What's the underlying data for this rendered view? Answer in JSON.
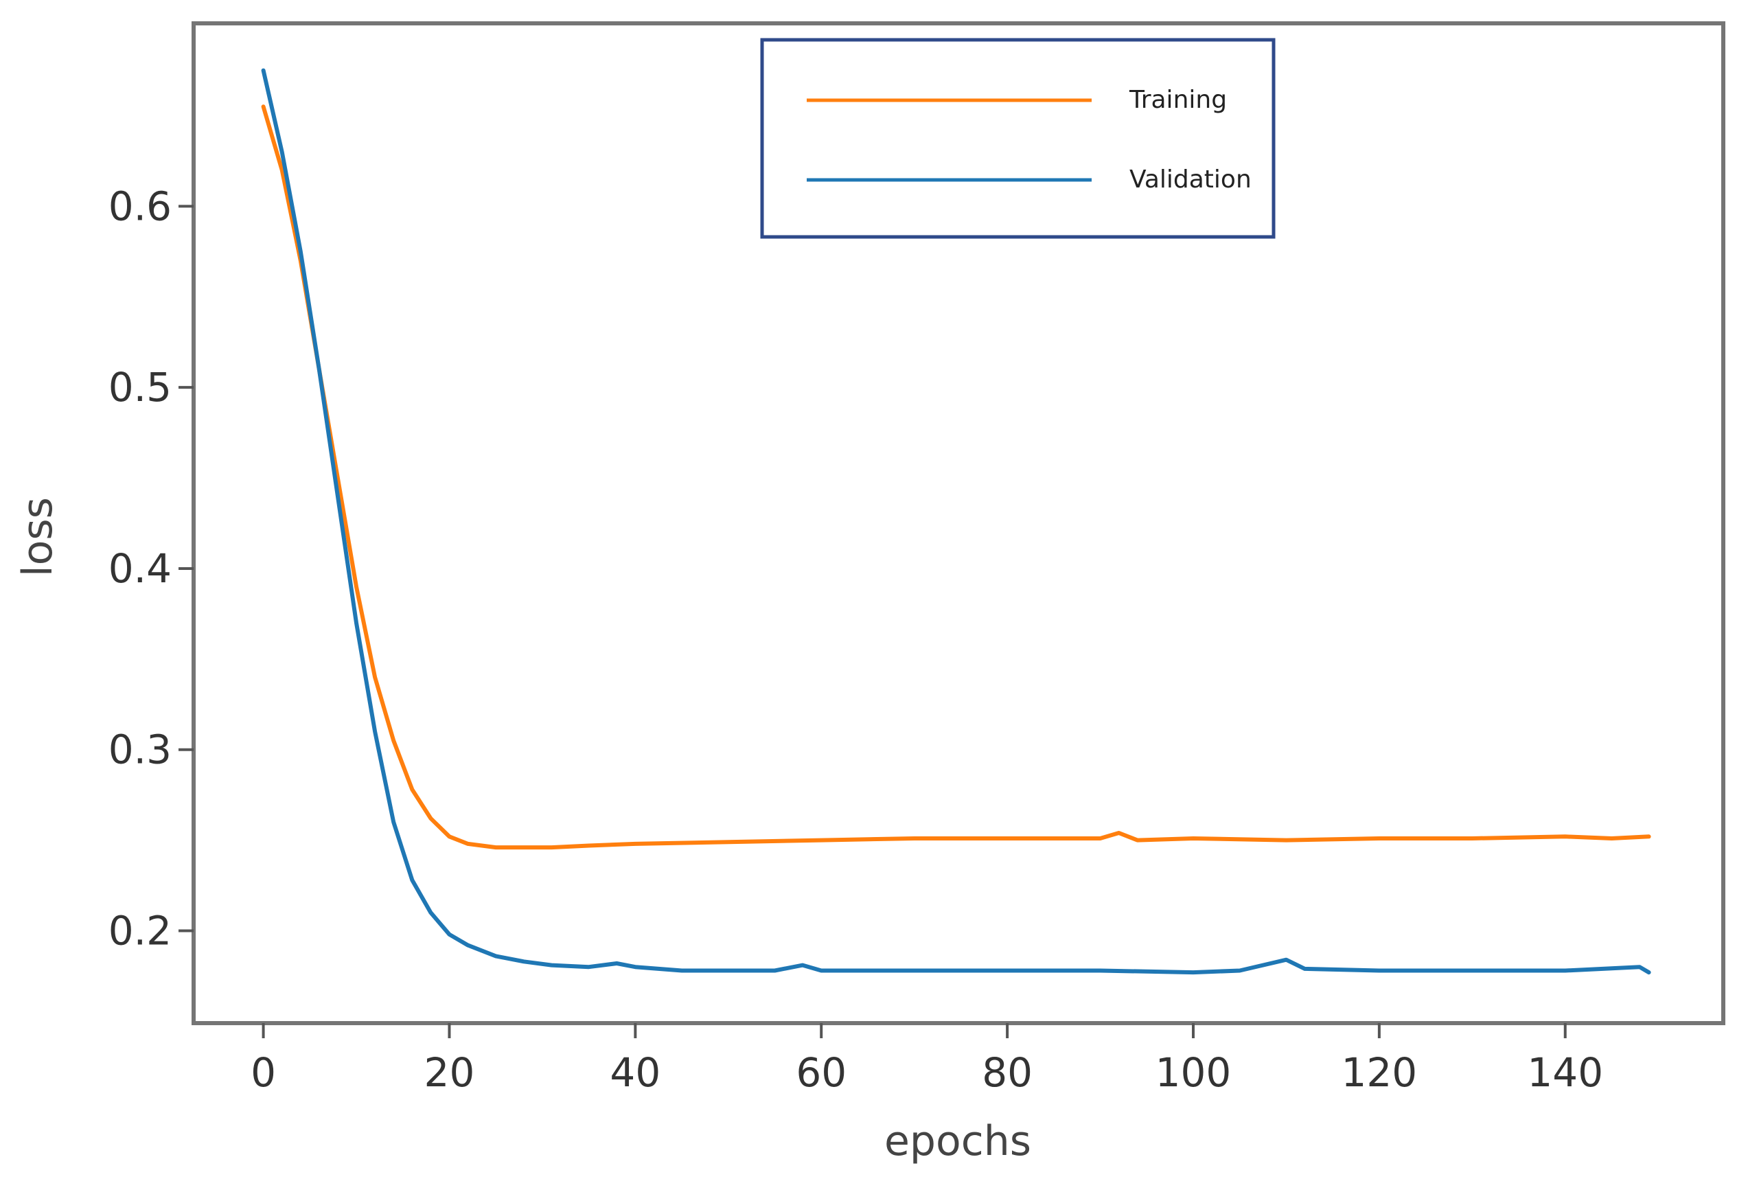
{
  "chart_data": {
    "type": "line",
    "title": "",
    "xlabel": "epochs",
    "ylabel": "loss",
    "xlim": [
      -7.5,
      157
    ],
    "ylim": [
      0.149,
      0.701
    ],
    "x_ticks": [
      0,
      20,
      40,
      60,
      80,
      100,
      120,
      140
    ],
    "y_ticks": [
      0.2,
      0.3,
      0.4,
      0.5,
      0.6
    ],
    "x_tick_labels": [
      "0",
      "20",
      "40",
      "60",
      "80",
      "100",
      "120",
      "140"
    ],
    "y_tick_labels": [
      "0.2",
      "0.3",
      "0.4",
      "0.5",
      "0.6"
    ],
    "grid": false,
    "legend_position": "top-center",
    "series": [
      {
        "name": "Training",
        "color": "#ff7f0e",
        "points": [
          [
            0,
            0.655
          ],
          [
            2,
            0.62
          ],
          [
            4,
            0.57
          ],
          [
            6,
            0.51
          ],
          [
            8,
            0.45
          ],
          [
            10,
            0.39
          ],
          [
            12,
            0.34
          ],
          [
            14,
            0.305
          ],
          [
            16,
            0.278
          ],
          [
            18,
            0.262
          ],
          [
            20,
            0.252
          ],
          [
            22,
            0.248
          ],
          [
            25,
            0.246
          ],
          [
            28,
            0.246
          ],
          [
            31,
            0.246
          ],
          [
            35,
            0.247
          ],
          [
            40,
            0.248
          ],
          [
            50,
            0.249
          ],
          [
            60,
            0.25
          ],
          [
            70,
            0.251
          ],
          [
            80,
            0.251
          ],
          [
            90,
            0.251
          ],
          [
            92,
            0.254
          ],
          [
            94,
            0.25
          ],
          [
            100,
            0.251
          ],
          [
            110,
            0.25
          ],
          [
            120,
            0.251
          ],
          [
            130,
            0.251
          ],
          [
            140,
            0.252
          ],
          [
            145,
            0.251
          ],
          [
            149,
            0.252
          ]
        ]
      },
      {
        "name": "Validation",
        "color": "#1f77b4",
        "points": [
          [
            0,
            0.675
          ],
          [
            2,
            0.63
          ],
          [
            4,
            0.575
          ],
          [
            6,
            0.51
          ],
          [
            8,
            0.44
          ],
          [
            10,
            0.37
          ],
          [
            12,
            0.31
          ],
          [
            14,
            0.26
          ],
          [
            16,
            0.228
          ],
          [
            18,
            0.21
          ],
          [
            20,
            0.198
          ],
          [
            22,
            0.192
          ],
          [
            25,
            0.186
          ],
          [
            28,
            0.183
          ],
          [
            31,
            0.181
          ],
          [
            35,
            0.18
          ],
          [
            38,
            0.182
          ],
          [
            40,
            0.18
          ],
          [
            45,
            0.178
          ],
          [
            50,
            0.178
          ],
          [
            55,
            0.178
          ],
          [
            58,
            0.181
          ],
          [
            60,
            0.178
          ],
          [
            70,
            0.178
          ],
          [
            80,
            0.178
          ],
          [
            90,
            0.178
          ],
          [
            100,
            0.177
          ],
          [
            105,
            0.178
          ],
          [
            110,
            0.184
          ],
          [
            112,
            0.179
          ],
          [
            120,
            0.178
          ],
          [
            130,
            0.178
          ],
          [
            140,
            0.178
          ],
          [
            148,
            0.18
          ],
          [
            149,
            0.177
          ]
        ]
      }
    ]
  }
}
